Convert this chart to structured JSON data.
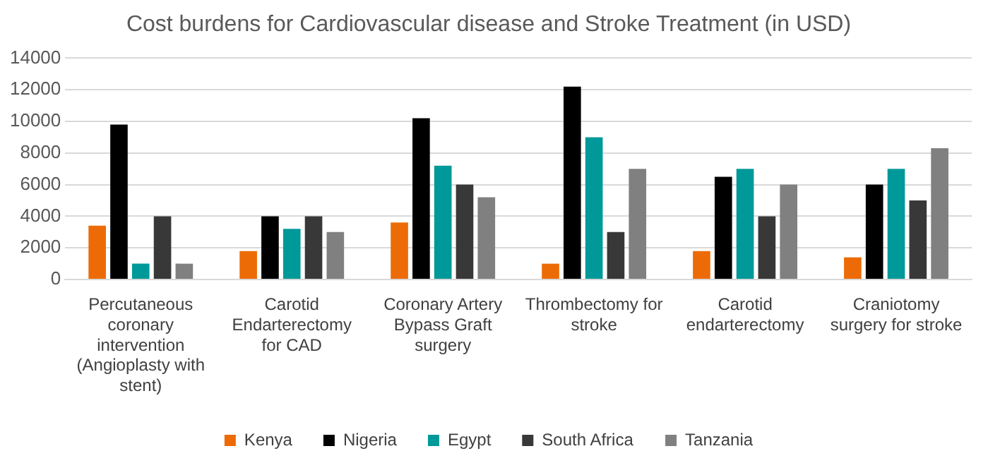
{
  "chart_data": {
    "type": "bar",
    "title": "Cost burdens for Cardiovascular disease and Stroke Treatment (in USD)",
    "categories": [
      "Percutaneous coronary intervention (Angioplasty with stent)",
      "Carotid Endarterectomy for CAD",
      "Coronary Artery Bypass Graft surgery",
      "Thrombectomy for stroke",
      "Carotid endarterectomy",
      "Craniotomy surgery for stroke"
    ],
    "series": [
      {
        "name": "Kenya",
        "color": "#ed6b06",
        "values": [
          3400,
          1800,
          3600,
          1000,
          1800,
          1400
        ]
      },
      {
        "name": "Nigeria",
        "color": "#000000",
        "values": [
          9800,
          4000,
          10200,
          12200,
          6500,
          6000
        ]
      },
      {
        "name": "Egypt",
        "color": "#009999",
        "values": [
          1000,
          3200,
          7200,
          9000,
          7000,
          7000
        ]
      },
      {
        "name": "South Africa",
        "color": "#383838",
        "values": [
          4000,
          4000,
          6000,
          3000,
          4000,
          5000
        ]
      },
      {
        "name": "Tanzania",
        "color": "#808080",
        "values": [
          1000,
          3000,
          5200,
          7000,
          6000,
          8300
        ]
      }
    ],
    "ylim": [
      0,
      14000
    ],
    "yticks": [
      0,
      2000,
      4000,
      6000,
      8000,
      10000,
      12000,
      14000
    ],
    "grid": "y",
    "legend": "bottom"
  }
}
